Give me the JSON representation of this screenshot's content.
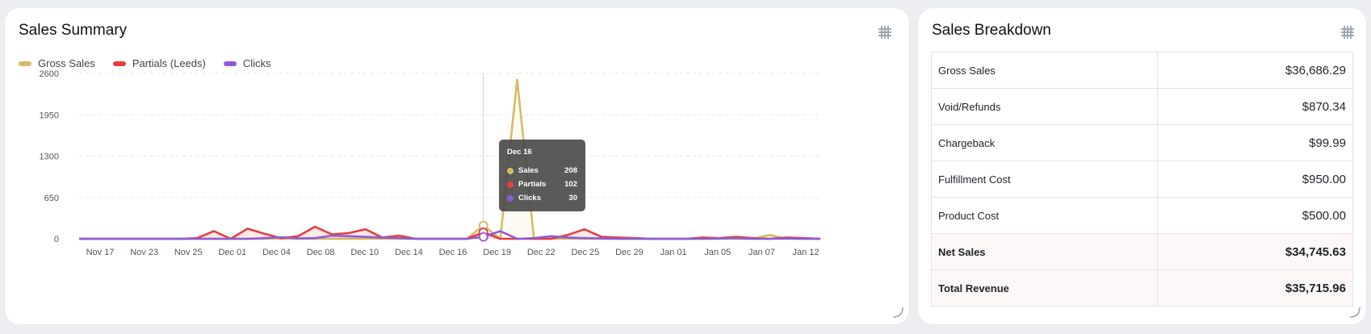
{
  "summary": {
    "title": "Sales Summary",
    "legend": [
      {
        "label": "Gross Sales",
        "color": "#d4bc63"
      },
      {
        "label": "Partials (Leeds)",
        "color": "#e53e3e"
      },
      {
        "label": "Clicks",
        "color": "#8e5ad8"
      }
    ],
    "tooltip": {
      "title": "Dec 16",
      "rows": [
        {
          "label": "Sales",
          "value": "208",
          "color": "#d4bc63"
        },
        {
          "label": "Partials",
          "value": "102",
          "color": "#e53e3e"
        },
        {
          "label": "Clicks",
          "value": "30",
          "color": "#8e5ad8"
        }
      ]
    }
  },
  "chart_data": {
    "type": "line",
    "ylim": [
      0,
      2600
    ],
    "yticks": [
      "2600",
      "1950",
      "1300",
      "650",
      "0"
    ],
    "x_ticks": [
      "Nov 17",
      "Nov 23",
      "Nov 25",
      "Dec 01",
      "Dec 04",
      "Dec 08",
      "Dec 10",
      "Dec 14",
      "Dec 16",
      "Dec 19",
      "Dec 22",
      "Dec 25",
      "Dec 29",
      "Jan 01",
      "Jan 05",
      "Jan 07",
      "Jan 12"
    ],
    "grid": true,
    "series": [
      {
        "name": "Gross Sales",
        "color": "#d4bc63",
        "values": [
          0,
          0,
          0,
          0,
          0,
          0,
          0,
          0,
          0,
          0,
          0,
          0,
          0,
          0,
          0,
          0,
          0,
          0,
          0,
          0,
          0,
          0,
          0,
          0,
          208,
          0,
          2500,
          0,
          0,
          0,
          0,
          0,
          0,
          0,
          0,
          0,
          0,
          0,
          0,
          0,
          0,
          60,
          0,
          0,
          0
        ]
      },
      {
        "name": "Partials (Leeds)",
        "color": "#e53e3e",
        "values": [
          0,
          0,
          0,
          0,
          0,
          0,
          0,
          10,
          120,
          0,
          160,
          80,
          10,
          40,
          190,
          70,
          90,
          150,
          20,
          50,
          0,
          0,
          0,
          0,
          102,
          0,
          0,
          0,
          0,
          60,
          150,
          30,
          20,
          10,
          0,
          0,
          0,
          20,
          10,
          30,
          10,
          0,
          20,
          10,
          0
        ]
      },
      {
        "name": "Clicks",
        "color": "#8e5ad8",
        "values": [
          0,
          0,
          0,
          0,
          0,
          0,
          0,
          0,
          0,
          0,
          0,
          10,
          25,
          5,
          10,
          50,
          40,
          30,
          20,
          10,
          0,
          0,
          0,
          0,
          30,
          120,
          0,
          10,
          40,
          20,
          10,
          5,
          0,
          0,
          0,
          0,
          0,
          0,
          5,
          10,
          0,
          0,
          5,
          0,
          0
        ]
      }
    ]
  },
  "breakdown": {
    "title": "Sales Breakdown",
    "rows": [
      {
        "label": "Gross Sales",
        "value": "$36,686.29",
        "bold": false
      },
      {
        "label": "Void/Refunds",
        "value": "$870.34",
        "bold": false
      },
      {
        "label": "Chargeback",
        "value": "$99.99",
        "bold": false
      },
      {
        "label": "Fulfillment Cost",
        "value": "$950.00",
        "bold": false
      },
      {
        "label": "Product Cost",
        "value": "$500.00",
        "bold": false
      },
      {
        "label": "Net Sales",
        "value": "$34,745.63",
        "bold": true
      },
      {
        "label": "Total Revenue",
        "value": "$35,715.96",
        "bold": true
      }
    ]
  }
}
